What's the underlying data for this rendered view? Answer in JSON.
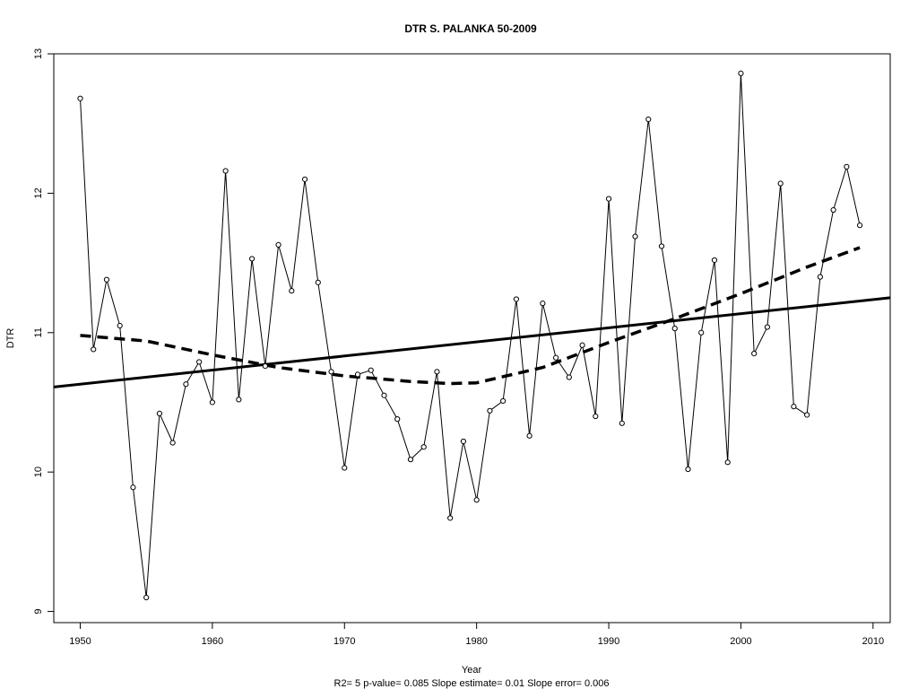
{
  "chart_data": {
    "type": "line",
    "title": "DTR   S. PALANKA 50-2009",
    "xlabel": "Year",
    "ylabel": "DTR",
    "caption": "R2= 5  p-value= 0.085  Slope estimate= 0.01  Slope error= 0.006",
    "xlim": [
      1948,
      2011.3
    ],
    "ylim": [
      8.92,
      13.0
    ],
    "x_ticks": [
      1950,
      1960,
      1970,
      1980,
      1990,
      2000,
      2010
    ],
    "y_ticks": [
      9,
      10,
      11,
      12,
      13
    ],
    "grid": false,
    "series": [
      {
        "style": "thin-line-with-open-circles",
        "x": [
          1950,
          1951,
          1952,
          1953,
          1954,
          1955,
          1956,
          1957,
          1958,
          1959,
          1960,
          1961,
          1962,
          1963,
          1964,
          1965,
          1966,
          1967,
          1968,
          1969,
          1970,
          1971,
          1972,
          1973,
          1974,
          1975,
          1976,
          1977,
          1978,
          1979,
          1980,
          1981,
          1982,
          1983,
          1984,
          1985,
          1986,
          1987,
          1988,
          1989,
          1990,
          1991,
          1992,
          1993,
          1994,
          1995,
          1996,
          1997,
          1998,
          1999,
          2000,
          2001,
          2002,
          2003,
          2004,
          2005,
          2006,
          2007,
          2008,
          2009
        ],
        "values": [
          12.68,
          10.88,
          11.38,
          11.05,
          9.89,
          9.1,
          10.42,
          10.21,
          10.63,
          10.79,
          10.5,
          12.16,
          10.52,
          11.53,
          10.76,
          11.63,
          11.3,
          12.1,
          11.36,
          10.72,
          10.03,
          10.7,
          10.73,
          10.55,
          10.38,
          10.09,
          10.18,
          10.72,
          9.67,
          10.22,
          9.8,
          10.44,
          10.51,
          11.24,
          10.26,
          11.21,
          10.82,
          10.68,
          10.91,
          10.4,
          11.96,
          10.35,
          11.69,
          12.53,
          11.62,
          11.03,
          10.02,
          11.0,
          11.52,
          10.07,
          12.86,
          10.85,
          11.04,
          12.07,
          10.47,
          10.41,
          11.4,
          11.88,
          12.19,
          11.77
        ]
      },
      {
        "style": "linear-trend",
        "x": [
          1948,
          2011.3
        ],
        "values": [
          10.61,
          11.25
        ]
      },
      {
        "style": "dashed-smooth",
        "x": [
          1950,
          1955,
          1960,
          1965,
          1970,
          1975,
          1978,
          1980,
          1985,
          1990,
          1995,
          2000,
          2005,
          2009
        ],
        "values": [
          10.98,
          10.94,
          10.84,
          10.75,
          10.69,
          10.65,
          10.635,
          10.64,
          10.75,
          10.93,
          11.1,
          11.28,
          11.47,
          11.61
        ]
      }
    ]
  }
}
